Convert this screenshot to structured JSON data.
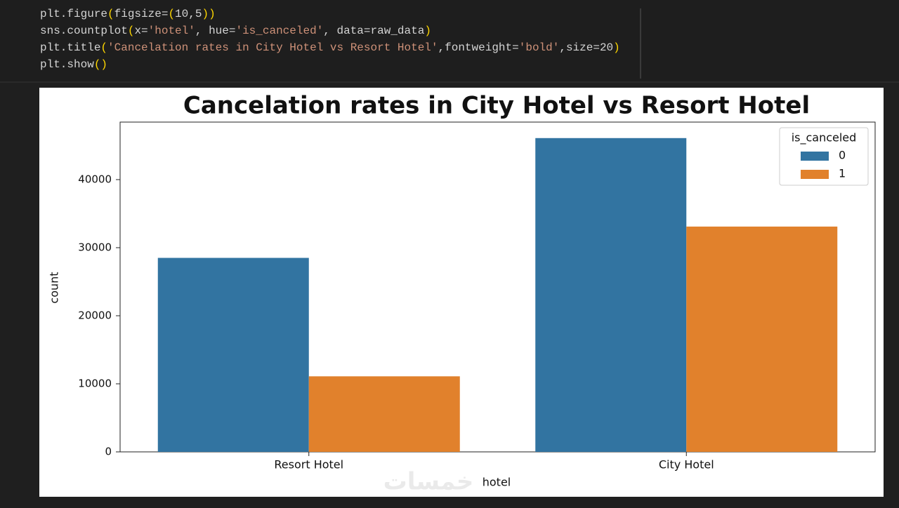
{
  "code": [
    [
      "plt.figure",
      "(",
      "figsize=",
      "(",
      "10,5",
      ")",
      ")"
    ],
    [
      "sns.countplot",
      "(",
      "x=",
      "'hotel'",
      ", hue=",
      "'is_canceled'",
      ", data=raw_data",
      ")"
    ],
    [
      "plt.title",
      "(",
      "'Cancelation rates in City Hotel vs Resort Hotel'",
      ",fontweight=",
      "'bold'",
      ",size=20",
      ")"
    ],
    [
      "plt.show",
      "()"
    ]
  ],
  "watermark": "خمسات",
  "chart_data": {
    "type": "bar",
    "title": "Cancelation rates in City Hotel vs Resort Hotel",
    "x_label": "hotel",
    "y_label": "count",
    "categories": [
      "Resort Hotel",
      "City Hotel"
    ],
    "legend_title": "is_canceled",
    "legend": "upper right",
    "series": [
      {
        "name": "0",
        "color": "#3274a1",
        "values": [
          28500,
          46100
        ]
      },
      {
        "name": "1",
        "color": "#e1812c",
        "values": [
          11100,
          33100
        ]
      }
    ],
    "ylim": [
      0,
      48450
    ],
    "yticks": [
      0,
      10000,
      20000,
      30000,
      40000
    ]
  }
}
